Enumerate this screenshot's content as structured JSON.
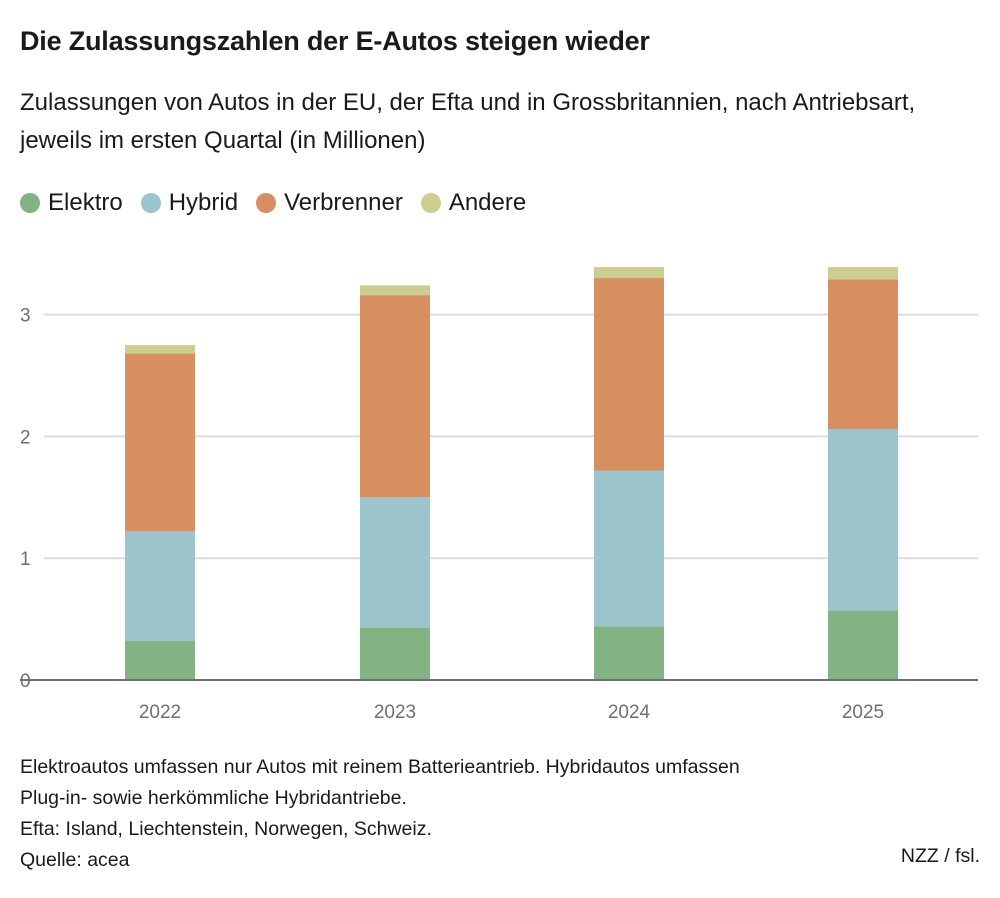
{
  "title": "Die Zulassungszahlen der E-Autos steigen wieder",
  "subtitle": "Zulassungen von Autos in der EU, der Efta und in Grossbritannien, nach Antriebsart, jeweils im ersten Quartal (in Millionen)",
  "notes": [
    "Elektroautos umfassen nur Autos mit reinem Batterieantrieb. Hybridautos umfassen",
    "Plug-in- sowie herkömmliche Hybridantriebe.",
    "Efta: Island, Liechtenstein, Norwegen, Schweiz.",
    "Quelle: acea"
  ],
  "credit": "NZZ / fsl.",
  "chart_data": {
    "type": "bar",
    "stacked": true,
    "categories": [
      "2022",
      "2023",
      "2024",
      "2025"
    ],
    "series": [
      {
        "name": "Elektro",
        "color": "#83b283",
        "values": [
          0.32,
          0.43,
          0.44,
          0.57
        ]
      },
      {
        "name": "Hybrid",
        "color": "#9bc4cc",
        "values": [
          0.9,
          1.07,
          1.28,
          1.49
        ]
      },
      {
        "name": "Verbrenner",
        "color": "#d78f62",
        "values": [
          1.46,
          1.66,
          1.58,
          1.23
        ]
      },
      {
        "name": "Andere",
        "color": "#cccd91",
        "values": [
          0.07,
          0.08,
          0.09,
          0.1
        ]
      }
    ],
    "yticks": [
      "0",
      "1",
      "2",
      "3"
    ],
    "ylim": [
      0,
      3.5
    ],
    "grid": true,
    "legend": "top-left"
  }
}
